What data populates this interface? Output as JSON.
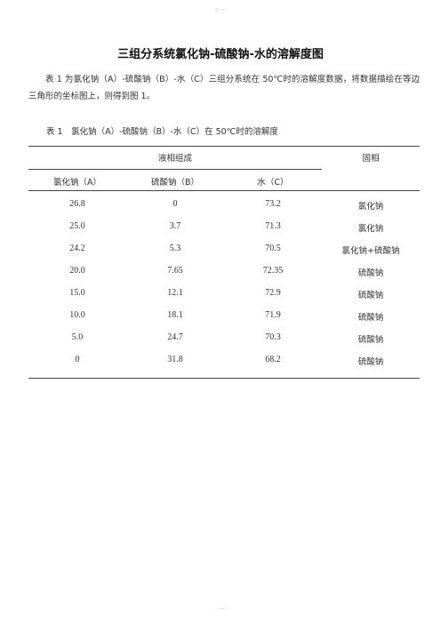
{
  "page": {
    "header_mark": "二·一一",
    "footer_mark": "一·一"
  },
  "document": {
    "title": "三组分系统氯化钠-硫酸钠-水的溶解度图",
    "intro": "表 1 为氯化钠（A）-硫酸钠（B）-水（C）三组分系统在 50℃时的溶解度数据，将数据描绘在等边三角形的坐标图上，则得到图 1。",
    "caption": "表 1　氯化钠（A）-硫酸钠（B）-水（C）在 50℃时的溶解度"
  },
  "table": {
    "group_header": "液相组成",
    "solid_header": "固相",
    "columns": [
      "氯化钠（A）",
      "硫酸钠（B）",
      "水（C）"
    ],
    "rows": [
      {
        "a": "26.8",
        "b": "0",
        "c": "73.2",
        "solid": "氯化钠"
      },
      {
        "a": "25.0",
        "b": "3.7",
        "c": "71.3",
        "solid": "氯化钠"
      },
      {
        "a": "24.2",
        "b": "5.3",
        "c": "70.5",
        "solid": "氯化钠+硫酸钠"
      },
      {
        "a": "20.0",
        "b": "7.65",
        "c": "72.35",
        "solid": "硫酸钠"
      },
      {
        "a": "15.0",
        "b": "12.1",
        "c": "72.9",
        "solid": "硫酸钠"
      },
      {
        "a": "10.0",
        "b": "18.1",
        "c": "71.9",
        "solid": "硫酸钠"
      },
      {
        "a": "5.0",
        "b": "24.7",
        "c": "70.3",
        "solid": "硫酸钠"
      },
      {
        "a": "0",
        "b": "31.8",
        "c": "68.2",
        "solid": "硫酸钠"
      }
    ]
  }
}
